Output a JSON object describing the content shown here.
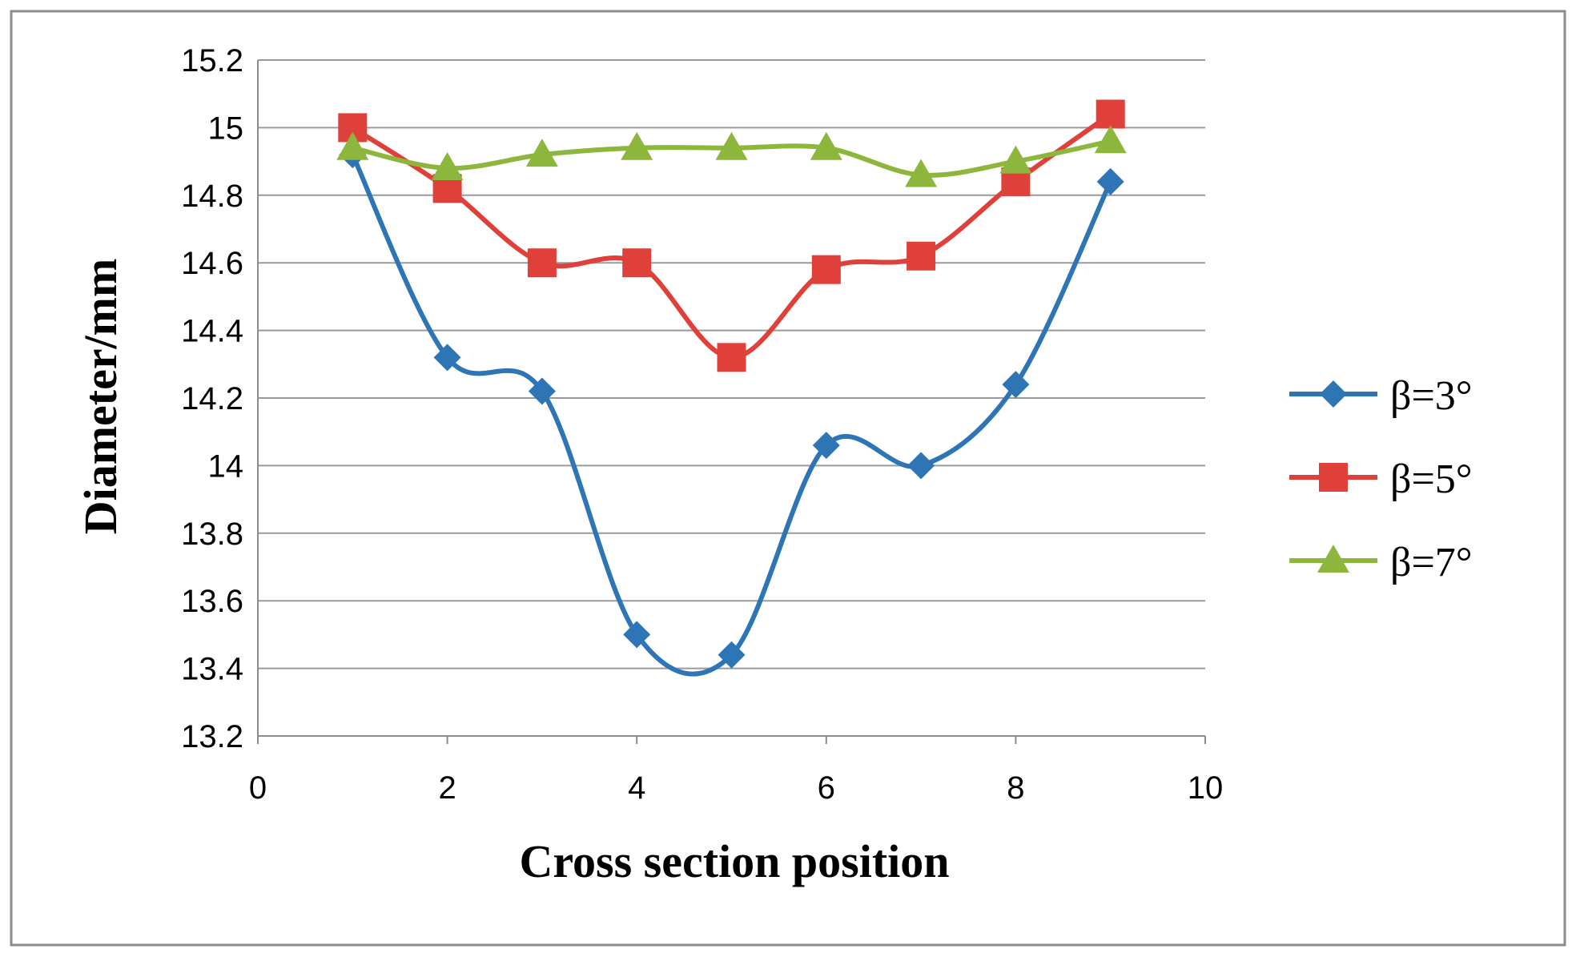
{
  "chart_data": {
    "type": "line",
    "title": "",
    "xlabel": "Cross section position",
    "ylabel": "Diameter/mm",
    "xlim": [
      0,
      10
    ],
    "ylim": [
      13.2,
      15.2
    ],
    "xticks": [
      "0",
      "2",
      "4",
      "6",
      "8",
      "10"
    ],
    "yticks": [
      "13.2",
      "13.4",
      "13.6",
      "13.8",
      "14",
      "14.2",
      "14.4",
      "14.6",
      "14.8",
      "15",
      "15.2"
    ],
    "grid": "horizontal",
    "legend_position": "right",
    "smooth": true,
    "series": [
      {
        "name": "β=3°",
        "color": "#2E75B6",
        "marker": "diamond",
        "x": [
          1,
          2,
          3,
          4,
          5,
          6,
          7,
          8,
          9
        ],
        "y": [
          14.92,
          14.32,
          14.22,
          13.5,
          13.44,
          14.06,
          14.0,
          14.24,
          14.84
        ]
      },
      {
        "name": "β=5°",
        "color": "#E0403A",
        "marker": "square",
        "x": [
          1,
          2,
          3,
          4,
          5,
          6,
          7,
          8,
          9
        ],
        "y": [
          15.0,
          14.82,
          14.6,
          14.6,
          14.32,
          14.58,
          14.62,
          14.84,
          15.04
        ]
      },
      {
        "name": "β=7°",
        "color": "#8CB63C",
        "marker": "triangle",
        "x": [
          1,
          2,
          3,
          4,
          5,
          6,
          7,
          8,
          9
        ],
        "y": [
          14.94,
          14.88,
          14.92,
          14.94,
          14.94,
          14.94,
          14.86,
          14.9,
          14.96
        ]
      }
    ]
  }
}
